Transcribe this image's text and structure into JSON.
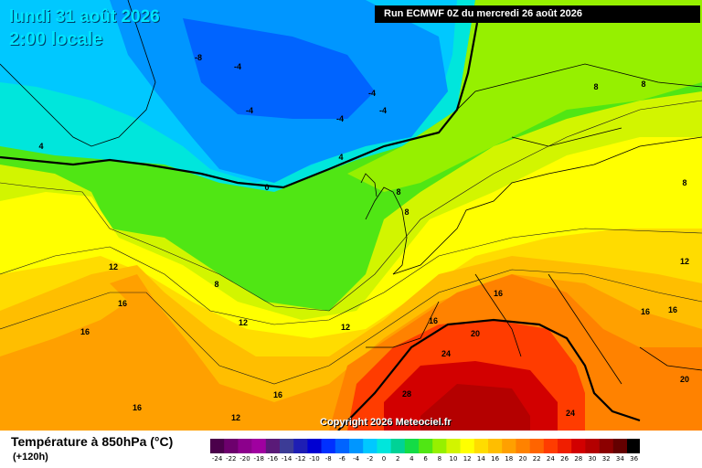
{
  "title": {
    "date": "lundi 31 août 2026",
    "time": "2:00 locale"
  },
  "run_info": "Run ECMWF 0Z du mercredi 26 août 2026",
  "copyright": "Copyright 2026 Meteociel.fr",
  "variable_title": "Température à 850hPa (°C)",
  "lead_time": "(+120h)",
  "colorbar": {
    "labels": [
      "-24",
      "-22",
      "-20",
      "-18",
      "-16",
      "-14",
      "-12",
      "-10",
      "-8",
      "-6",
      "-4",
      "-2",
      "0",
      "2",
      "4",
      "6",
      "8",
      "10",
      "12",
      "14",
      "16",
      "18",
      "20",
      "22",
      "24",
      "26",
      "28",
      "30",
      "32",
      "34",
      "36"
    ],
    "colors": [
      "#4b004b",
      "#6d006d",
      "#8c008c",
      "#a000a0",
      "#5a1a78",
      "#3c3c96",
      "#1e1eb4",
      "#0000d2",
      "#0030ff",
      "#0064ff",
      "#0096ff",
      "#00c8ff",
      "#00e6dc",
      "#00d296",
      "#14dc46",
      "#50e614",
      "#96f000",
      "#d2f500",
      "#ffff00",
      "#ffdc00",
      "#ffbe00",
      "#ffa000",
      "#ff8200",
      "#ff6400",
      "#ff3c00",
      "#f01e00",
      "#d20000",
      "#b40000",
      "#8c0000",
      "#640000",
      "#000000"
    ]
  },
  "isotherm_labels": [
    {
      "text": "-8"
    },
    {
      "text": "-4"
    },
    {
      "text": "-4"
    },
    {
      "text": "-4"
    },
    {
      "text": "-4"
    },
    {
      "text": "-4"
    },
    {
      "text": "0"
    },
    {
      "text": "4"
    },
    {
      "text": "4"
    },
    {
      "text": "8"
    },
    {
      "text": "8"
    },
    {
      "text": "8"
    },
    {
      "text": "8"
    },
    {
      "text": "8"
    },
    {
      "text": "8"
    },
    {
      "text": "12"
    },
    {
      "text": "12"
    },
    {
      "text": "12"
    },
    {
      "text": "12"
    },
    {
      "text": "16"
    },
    {
      "text": "16"
    },
    {
      "text": "16"
    },
    {
      "text": "16"
    },
    {
      "text": "16"
    },
    {
      "text": "16"
    },
    {
      "text": "16"
    },
    {
      "text": "16"
    },
    {
      "text": "20"
    },
    {
      "text": "20"
    },
    {
      "text": "24"
    },
    {
      "text": "24"
    },
    {
      "text": "28"
    },
    {
      "text": "12"
    }
  ]
}
